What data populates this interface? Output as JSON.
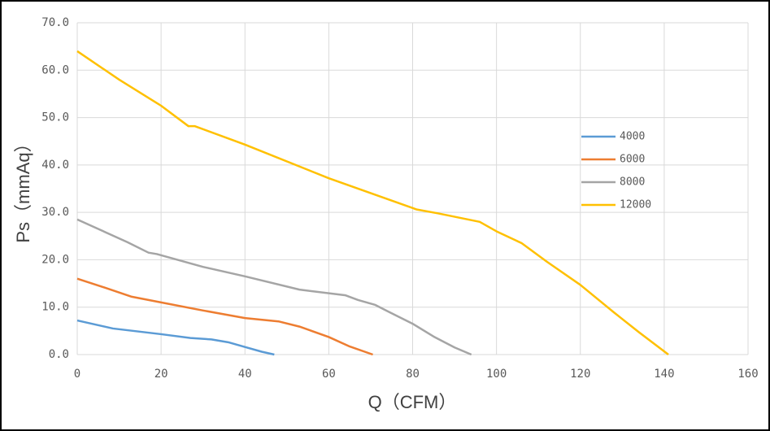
{
  "chart_data": {
    "type": "line",
    "x_label": "Q（CFM）",
    "y_label": "Ps（mmAq）",
    "xlim": [
      0,
      160
    ],
    "xticks": [
      0,
      20,
      40,
      60,
      80,
      100,
      120,
      140,
      160
    ],
    "ylim": [
      0,
      70
    ],
    "yticks": [
      {
        "value": 0,
        "label": "0.0"
      },
      {
        "value": 10,
        "label": "10.0"
      },
      {
        "value": 20,
        "label": "20.0"
      },
      {
        "value": 30,
        "label": "30.0"
      },
      {
        "value": 40,
        "label": "40.0"
      },
      {
        "value": 50,
        "label": "50.0"
      },
      {
        "value": 60,
        "label": "60.0"
      },
      {
        "value": 70,
        "label": "70.0"
      }
    ],
    "grid": true,
    "legend": "right",
    "series": [
      {
        "name": "4000",
        "color": "#5b9bd5",
        "x": [
          0,
          8.5,
          20,
          27,
          32,
          36,
          40,
          44,
          47
        ],
        "values": [
          7.2,
          5.5,
          4.3,
          3.5,
          3.2,
          2.6,
          1.6,
          0.6,
          0
        ]
      },
      {
        "name": "6000",
        "color": "#ed7d31",
        "x": [
          0,
          7,
          13,
          20,
          30,
          40,
          48,
          53,
          60,
          65,
          70.5
        ],
        "values": [
          16,
          14,
          12.2,
          11,
          9.3,
          7.7,
          7,
          5.9,
          3.7,
          1.7,
          0
        ]
      },
      {
        "name": "8000",
        "color": "#a5a5a5",
        "x": [
          0,
          5,
          12,
          17,
          19,
          30,
          40,
          53,
          64,
          67,
          71,
          75,
          80,
          85,
          90,
          94
        ],
        "values": [
          28.5,
          26.5,
          23.7,
          21.5,
          21.2,
          18.5,
          16.5,
          13.7,
          12.5,
          11.5,
          10.5,
          8.7,
          6.5,
          3.8,
          1.5,
          0
        ]
      },
      {
        "name": "12000",
        "color": "#ffc000",
        "x": [
          0,
          10,
          20,
          26.5,
          28,
          40,
          60,
          81,
          86,
          96,
          100,
          106,
          112,
          120,
          128,
          134,
          141
        ],
        "values": [
          64,
          58,
          52.5,
          48.2,
          48.2,
          44.3,
          37.2,
          30.6,
          29.8,
          28,
          26,
          23.5,
          19.6,
          14.7,
          8.9,
          4.7,
          0
        ]
      }
    ]
  }
}
